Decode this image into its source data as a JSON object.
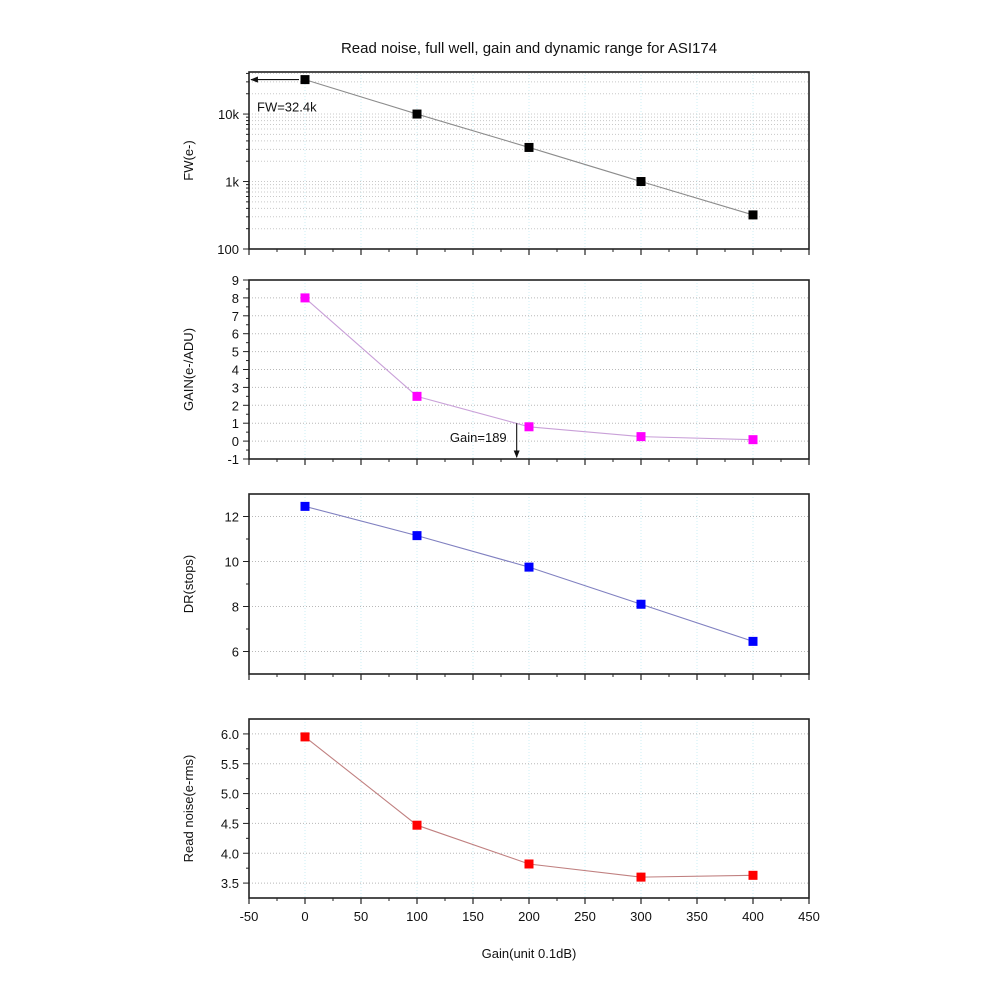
{
  "chart_data": {
    "type": "line",
    "title": "Read noise, full well, gain and dynamic range for ASI174",
    "xlabel": "Gain(unit 0.1dB)",
    "xlim": [
      -50,
      450
    ],
    "x_ticks": [
      -50,
      0,
      50,
      100,
      150,
      200,
      250,
      300,
      350,
      400,
      450
    ],
    "x_tick_labels": [
      "-50",
      "0",
      "50",
      "100",
      "150",
      "200",
      "250",
      "300",
      "350",
      "400",
      "450"
    ],
    "x": [
      0,
      100,
      200,
      300,
      400
    ],
    "grid": true,
    "panels": [
      {
        "id": "fw",
        "ylabel": "FW(e-)",
        "yscale": "log",
        "ylim": [
          100,
          42000
        ],
        "y_ticks": [
          100,
          1000,
          10000
        ],
        "y_tick_labels": [
          "100",
          "1k",
          "10k"
        ],
        "series": [
          {
            "name": "FW",
            "values": [
              32400,
              10000,
              3200,
              1000,
              320
            ],
            "marker_color": "#000000",
            "line_color": "#8c8c8c"
          }
        ],
        "annotation": {
          "text": "FW=32.4k",
          "arrow_from_x": 0,
          "arrow_to_x": -50,
          "arrow_y": 32400
        }
      },
      {
        "id": "gain",
        "ylabel": "GAIN(e-/ADU)",
        "yscale": "linear",
        "ylim": [
          -1,
          9
        ],
        "y_ticks": [
          -1,
          0,
          1,
          2,
          3,
          4,
          5,
          6,
          7,
          8,
          9
        ],
        "y_tick_labels": [
          "-1",
          "0",
          "1",
          "2",
          "3",
          "4",
          "5",
          "6",
          "7",
          "8",
          "9"
        ],
        "series": [
          {
            "name": "Gain",
            "values": [
              8.0,
              2.5,
              0.8,
              0.25,
              0.08
            ],
            "marker_color": "#ff00ff",
            "line_color": "#c9a0d8"
          }
        ],
        "annotation": {
          "text": "Gain=189",
          "arrow_x": 189,
          "arrow_from_y": 1.0,
          "arrow_to_y": -0.9
        }
      },
      {
        "id": "dr",
        "ylabel": "DR(stops)",
        "yscale": "linear",
        "ylim": [
          5,
          13
        ],
        "y_ticks": [
          6,
          8,
          10,
          12
        ],
        "y_tick_labels": [
          "6",
          "8",
          "10",
          "12"
        ],
        "series": [
          {
            "name": "DR",
            "values": [
              12.45,
              11.15,
              9.75,
              8.1,
              6.45
            ],
            "marker_color": "#0000ff",
            "line_color": "#8080c0"
          }
        ]
      },
      {
        "id": "read-noise",
        "ylabel": "Read noise(e-rms)",
        "yscale": "linear",
        "ylim": [
          3.25,
          6.25
        ],
        "y_ticks": [
          3.5,
          4.0,
          4.5,
          5.0,
          5.5,
          6.0
        ],
        "y_tick_labels": [
          "3.5",
          "4.0",
          "4.5",
          "5.0",
          "5.5",
          "6.0"
        ],
        "series": [
          {
            "name": "Read noise",
            "values": [
              5.95,
              4.47,
              3.82,
              3.6,
              3.63
            ],
            "marker_color": "#ff0000",
            "line_color": "#c08080"
          }
        ]
      }
    ]
  }
}
